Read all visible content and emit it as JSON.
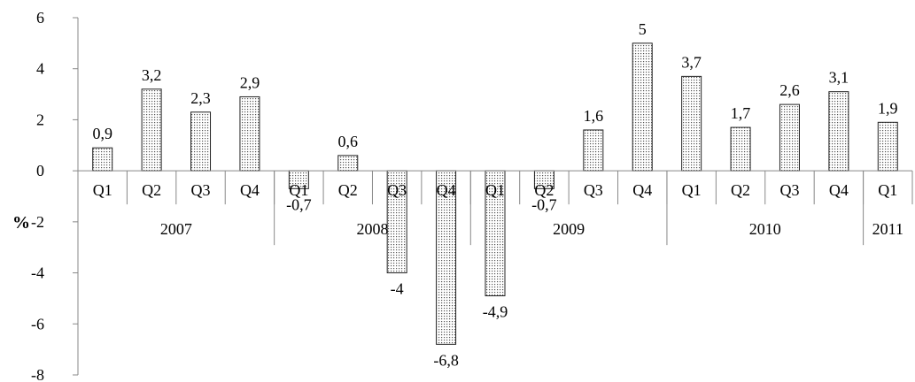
{
  "chart_data": {
    "type": "bar",
    "ylabel": "%",
    "ylim": [
      -8,
      6
    ],
    "yticks": [
      "6",
      "4",
      "2",
      "0",
      "-2",
      "-4",
      "-6",
      "-8"
    ],
    "ytick_values": [
      6,
      4,
      2,
      0,
      -2,
      -4,
      -6,
      -8
    ],
    "grid": false,
    "bar_fill": "dotted",
    "categories": [
      "Q1",
      "Q2",
      "Q3",
      "Q4",
      "Q1",
      "Q2",
      "Q3",
      "Q4",
      "Q1",
      "Q2",
      "Q3",
      "Q4",
      "Q1",
      "Q2",
      "Q3",
      "Q4",
      "Q1"
    ],
    "values": [
      0.9,
      3.2,
      2.3,
      2.9,
      -0.7,
      0.6,
      -4,
      -6.8,
      -4.9,
      -0.7,
      1.6,
      5,
      3.7,
      1.7,
      2.6,
      3.1,
      1.9
    ],
    "data_labels": [
      "0,9",
      "3,2",
      "2,3",
      "2,9",
      "-0,7",
      "0,6",
      "-4",
      "-6,8",
      "-4,9",
      "-0,7",
      "1,6",
      "5",
      "3,7",
      "1,7",
      "2,6",
      "3,1",
      "1,9"
    ],
    "groups": [
      {
        "label": "2007",
        "count": 4
      },
      {
        "label": "2008",
        "count": 4
      },
      {
        "label": "2009",
        "count": 4
      },
      {
        "label": "2010",
        "count": 4
      },
      {
        "label": "2011",
        "count": 1
      }
    ]
  }
}
